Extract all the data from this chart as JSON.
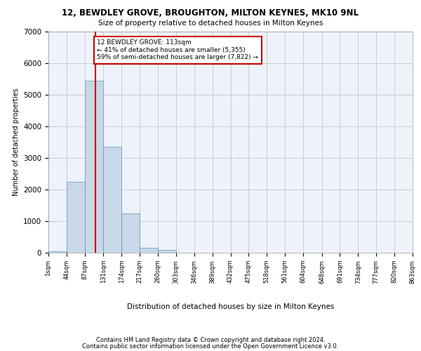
{
  "title1": "12, BEWDLEY GROVE, BROUGHTON, MILTON KEYNES, MK10 9NL",
  "title2": "Size of property relative to detached houses in Milton Keynes",
  "xlabel": "Distribution of detached houses by size in Milton Keynes",
  "ylabel": "Number of detached properties",
  "footnote1": "Contains HM Land Registry data © Crown copyright and database right 2024.",
  "footnote2": "Contains public sector information licensed under the Open Government Licence v3.0.",
  "bar_color": "#c8d8e8",
  "bar_edge_color": "#5599aa",
  "grid_color": "#cccccc",
  "bg_color": "#eef2fa",
  "red_line_color": "#cc0000",
  "annotation_box_color": "#cc0000",
  "property_size": 113,
  "annotation_text": "12 BEWDLEY GROVE: 113sqm\n← 41% of detached houses are smaller (5,355)\n59% of semi-detached houses are larger (7,822) →",
  "bin_edges": [
    1,
    44,
    87,
    131,
    174,
    217,
    260,
    303,
    346,
    389,
    432,
    475,
    518,
    561,
    604,
    648,
    691,
    734,
    777,
    820,
    863
  ],
  "bin_labels": [
    "1sqm",
    "44sqm",
    "87sqm",
    "131sqm",
    "174sqm",
    "217sqm",
    "260sqm",
    "303sqm",
    "346sqm",
    "389sqm",
    "432sqm",
    "475sqm",
    "518sqm",
    "561sqm",
    "604sqm",
    "648sqm",
    "691sqm",
    "734sqm",
    "777sqm",
    "820sqm",
    "863sqm"
  ],
  "bar_heights": [
    50,
    2250,
    5450,
    3350,
    1250,
    150,
    90,
    0,
    0,
    0,
    0,
    0,
    0,
    0,
    0,
    0,
    0,
    0,
    0,
    0
  ],
  "ylim": [
    0,
    7000
  ],
  "yticks": [
    0,
    1000,
    2000,
    3000,
    4000,
    5000,
    6000,
    7000
  ]
}
